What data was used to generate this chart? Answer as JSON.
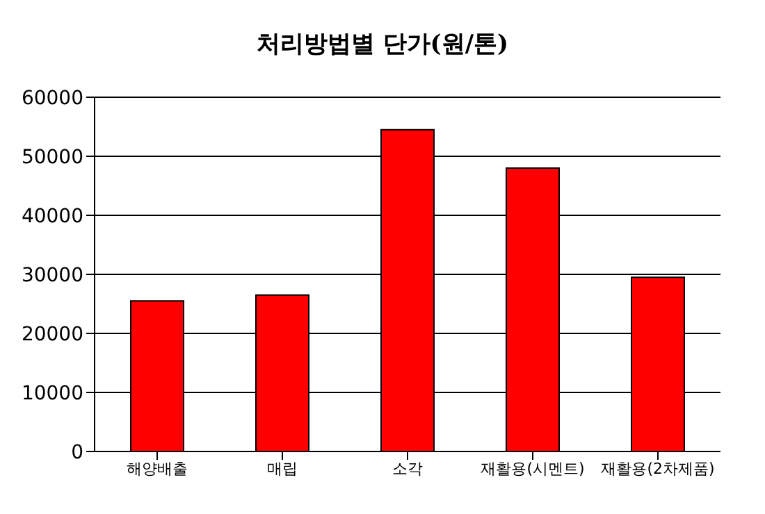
{
  "chart_data": {
    "type": "bar",
    "title": "처리방법별 단가(원/톤)",
    "categories": [
      "해양배출",
      "매립",
      "소각",
      "재활용(시멘트)",
      "재활용(2차제품)"
    ],
    "values": [
      25500,
      26500,
      54500,
      48000,
      29500
    ],
    "color": "#ff0000",
    "ylim": [
      0,
      60000
    ],
    "yticks": [
      0,
      10000,
      20000,
      30000,
      40000,
      50000,
      60000
    ],
    "grid": "y"
  }
}
